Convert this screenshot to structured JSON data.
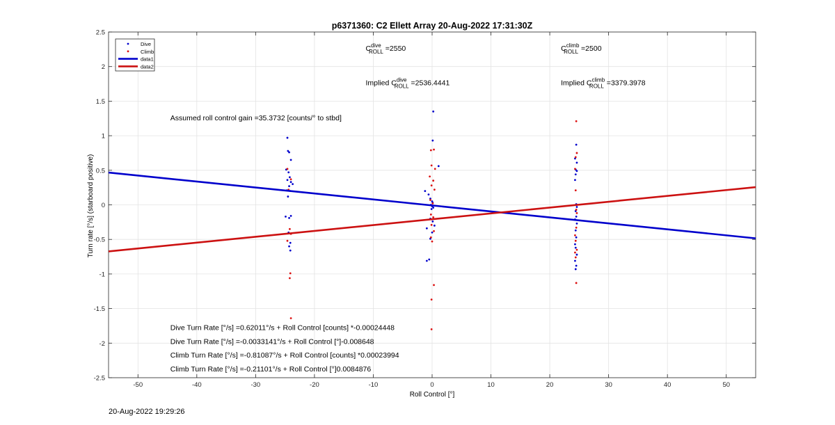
{
  "chart_data": {
    "type": "scatter",
    "title": "p6371360: C2 Ellett Array 20-Aug-2022 17:31:30Z",
    "xlabel": "Roll Control [°]",
    "ylabel": "Turn rate [°/s] (starboard positive)",
    "xlim": [
      -55,
      55
    ],
    "ylim": [
      -2.5,
      2.5
    ],
    "xticks": [
      "-50",
      "-40",
      "-30",
      "-20",
      "-10",
      "0",
      "10",
      "20",
      "30",
      "40",
      "50"
    ],
    "yticks": [
      "-2.5",
      "-2",
      "-1.5",
      "-1",
      "-0.5",
      "0",
      "0.5",
      "1",
      "1.5",
      "2",
      "2.5"
    ],
    "grid": true,
    "legend_position": "top-left",
    "legend": [
      "Dive",
      "Climb",
      "data1",
      "data2"
    ],
    "series": [
      {
        "name": "Dive",
        "kind": "scatter",
        "color": "#0000cc",
        "points": [
          [
            -24.6,
            0.97
          ],
          [
            -24.5,
            0.78
          ],
          [
            -24.3,
            0.76
          ],
          [
            -24.8,
            0.51
          ],
          [
            -24.4,
            0.47
          ],
          [
            -24.2,
            0.4
          ],
          [
            -24.6,
            0.36
          ],
          [
            -24.0,
            0.33
          ],
          [
            -24.3,
            0.27
          ],
          [
            -24.7,
            0.21
          ],
          [
            -24.1,
            0.2
          ],
          [
            -24.5,
            0.12
          ],
          [
            -24.9,
            -0.17
          ],
          [
            -24.3,
            -0.19
          ],
          [
            -24.0,
            -0.16
          ],
          [
            -24.4,
            -0.4
          ],
          [
            -24.1,
            -0.55
          ],
          [
            -24.3,
            -0.6
          ],
          [
            -24.1,
            -0.66
          ],
          [
            -23.7,
            0.3
          ],
          [
            -24.0,
            0.65
          ],
          [
            0.2,
            1.35
          ],
          [
            0.1,
            0.93
          ],
          [
            1.1,
            0.56
          ],
          [
            -1.2,
            0.2
          ],
          [
            -0.6,
            0.15
          ],
          [
            -0.3,
            0.09
          ],
          [
            0.0,
            0.05
          ],
          [
            0.1,
            0.03
          ],
          [
            -0.2,
            0.0
          ],
          [
            0.0,
            -0.02
          ],
          [
            0.2,
            -0.04
          ],
          [
            -0.1,
            -0.06
          ],
          [
            -0.3,
            -0.2
          ],
          [
            0.1,
            -0.24
          ],
          [
            -0.9,
            -0.34
          ],
          [
            0.0,
            -0.4
          ],
          [
            -0.3,
            -0.49
          ],
          [
            -0.5,
            -0.79
          ],
          [
            -0.9,
            -0.81
          ],
          [
            0.4,
            -0.3
          ],
          [
            24.5,
            0.87
          ],
          [
            24.3,
            0.67
          ],
          [
            24.6,
            0.61
          ],
          [
            24.4,
            0.51
          ],
          [
            24.6,
            0.49
          ],
          [
            24.4,
            0.44
          ],
          [
            24.3,
            0.36
          ],
          [
            24.5,
            0.01
          ],
          [
            24.6,
            -0.03
          ],
          [
            24.4,
            -0.09
          ],
          [
            24.5,
            -0.17
          ],
          [
            24.3,
            -0.21
          ],
          [
            24.6,
            -0.27
          ],
          [
            24.4,
            -0.37
          ],
          [
            24.5,
            -0.47
          ],
          [
            24.3,
            -0.57
          ],
          [
            24.4,
            -0.62
          ],
          [
            24.6,
            -0.72
          ],
          [
            24.3,
            -0.81
          ],
          [
            24.5,
            -0.88
          ],
          [
            24.4,
            -0.93
          ]
        ]
      },
      {
        "name": "Climb",
        "kind": "scatter",
        "color": "#dd1111",
        "points": [
          [
            -24.6,
            0.52
          ],
          [
            -24.0,
            0.37
          ],
          [
            -24.4,
            0.22
          ],
          [
            -24.2,
            -0.35
          ],
          [
            -24.0,
            -0.42
          ],
          [
            -24.6,
            -0.52
          ],
          [
            -24.1,
            -0.99
          ],
          [
            -24.2,
            -1.06
          ],
          [
            -24.0,
            -1.64
          ],
          [
            0.3,
            0.8
          ],
          [
            -0.2,
            0.79
          ],
          [
            -0.1,
            0.57
          ],
          [
            0.5,
            0.52
          ],
          [
            -0.4,
            0.41
          ],
          [
            0.2,
            0.35
          ],
          [
            -0.1,
            0.28
          ],
          [
            0.4,
            0.22
          ],
          [
            -0.3,
            0.07
          ],
          [
            0.1,
            0.02
          ],
          [
            -0.2,
            -0.14
          ],
          [
            0.2,
            -0.18
          ],
          [
            -0.1,
            -0.29
          ],
          [
            0.3,
            -0.38
          ],
          [
            -0.2,
            -0.47
          ],
          [
            0.0,
            -0.53
          ],
          [
            0.3,
            -1.16
          ],
          [
            -0.1,
            -1.37
          ],
          [
            -0.1,
            -1.8
          ],
          [
            24.5,
            1.21
          ],
          [
            24.6,
            0.75
          ],
          [
            24.4,
            0.69
          ],
          [
            24.3,
            0.52
          ],
          [
            24.4,
            0.21
          ],
          [
            24.5,
            -0.07
          ],
          [
            24.6,
            -0.12
          ],
          [
            24.5,
            -0.33
          ],
          [
            24.3,
            -0.44
          ],
          [
            24.4,
            -0.52
          ],
          [
            24.6,
            -0.65
          ],
          [
            24.3,
            -0.69
          ],
          [
            24.4,
            -0.76
          ],
          [
            24.5,
            -1.13
          ]
        ]
      },
      {
        "name": "data1",
        "kind": "line",
        "color": "#0000cc",
        "x": [
          -55,
          55
        ],
        "y": [
          0.467,
          -0.484
        ]
      },
      {
        "name": "data2",
        "kind": "line",
        "color": "#cc1111",
        "x": [
          -55,
          55
        ],
        "y": [
          -0.673,
          0.256
        ]
      }
    ],
    "annotations": [
      {
        "id": "cdive",
        "base": "C",
        "sup": "dive",
        "sub": "ROLL",
        "value": " =2550",
        "x": -11.3,
        "y": 2.23
      },
      {
        "id": "cclimb",
        "base": "C",
        "sup": "climb",
        "sub": "ROLL",
        "value": " =2500",
        "x": 21.9,
        "y": 2.23
      },
      {
        "id": "implied-dive",
        "prefix": "Implied ",
        "base": "C",
        "sup": "dive",
        "sub": "ROLL",
        "value": " =2536.4441",
        "x": -11.3,
        "y": 1.73
      },
      {
        "id": "implied-climb",
        "prefix": "Implied ",
        "base": "C",
        "sup": "climb",
        "sub": "ROLL",
        "value": " =3379.3978",
        "x": 21.9,
        "y": 1.73
      },
      {
        "id": "gain",
        "text": "Assumed roll control gain =35.3732 [counts/° to stbd]",
        "x": -44.5,
        "y": 1.22
      },
      {
        "id": "eq1",
        "text": "Dive Turn Rate [°/s] =0.62011°/s + Roll Control [counts] *-0.00024448",
        "x": -44.5,
        "y": -1.81
      },
      {
        "id": "eq2",
        "text": "Dive Turn Rate [°/s] =-0.0033141°/s + Roll Control [°]-0.008648",
        "x": -44.5,
        "y": -2.01
      },
      {
        "id": "eq3",
        "text": "Climb Turn Rate [°/s] =-0.81087°/s + Roll Control [counts] *0.00023994",
        "x": -44.5,
        "y": -2.21
      },
      {
        "id": "eq4",
        "text": "Climb Turn Rate [°/s] =-0.21101°/s + Roll Control [°]0.0084876",
        "x": -44.5,
        "y": -2.41
      }
    ]
  },
  "footer": {
    "timestamp": "20-Aug-2022 19:29:26"
  }
}
